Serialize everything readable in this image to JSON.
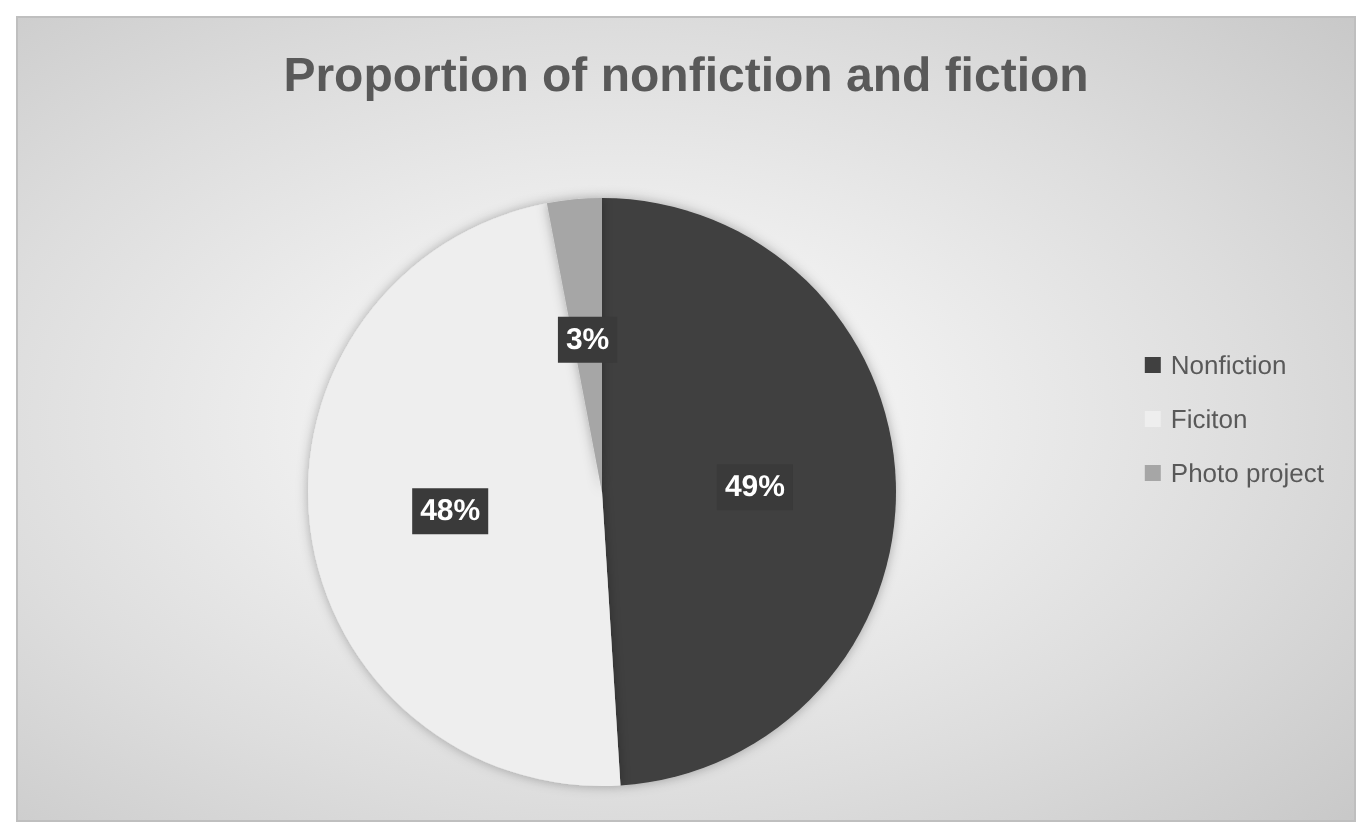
{
  "chart_data": {
    "type": "pie",
    "title": "Proportion of nonfiction and fiction",
    "categories": [
      "Nonfiction",
      "Ficiton",
      "Photo project"
    ],
    "values": [
      49,
      48,
      3
    ],
    "value_labels": [
      "49%",
      "48%",
      "3%"
    ],
    "colors": [
      "#404040",
      "#eeeeee",
      "#a6a6a6"
    ],
    "legend": "right"
  }
}
